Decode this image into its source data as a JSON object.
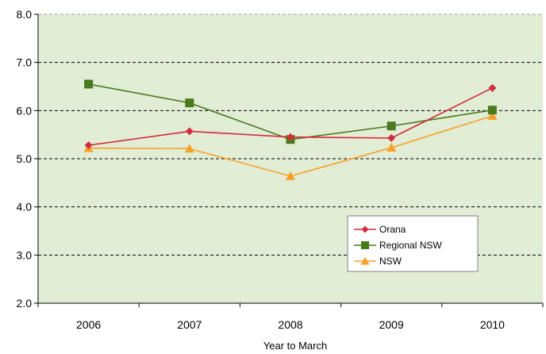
{
  "chart_data": {
    "type": "line",
    "title": "",
    "xlabel": "Year to March",
    "ylabel": "",
    "categories": [
      "2006",
      "2007",
      "2008",
      "2009",
      "2010"
    ],
    "ylim": [
      2.0,
      8.0
    ],
    "yticks": [
      "2.0",
      "3.0",
      "4.0",
      "5.0",
      "6.0",
      "7.0",
      "8.0"
    ],
    "grid": "horizontal dashed",
    "legend_position": "bottom-right",
    "plot_background": "#e2edd6",
    "series": [
      {
        "name": "Orana",
        "values": [
          5.28,
          5.57,
          5.45,
          5.43,
          6.47
        ],
        "color": "#d42c3c",
        "marker": "diamond"
      },
      {
        "name": "Regional NSW",
        "values": [
          6.55,
          6.16,
          5.4,
          5.68,
          6.01
        ],
        "color": "#4a7a1e",
        "marker": "square"
      },
      {
        "name": "NSW",
        "values": [
          5.22,
          5.21,
          4.64,
          5.23,
          5.89
        ],
        "color": "#f7a128",
        "marker": "triangle"
      }
    ]
  }
}
